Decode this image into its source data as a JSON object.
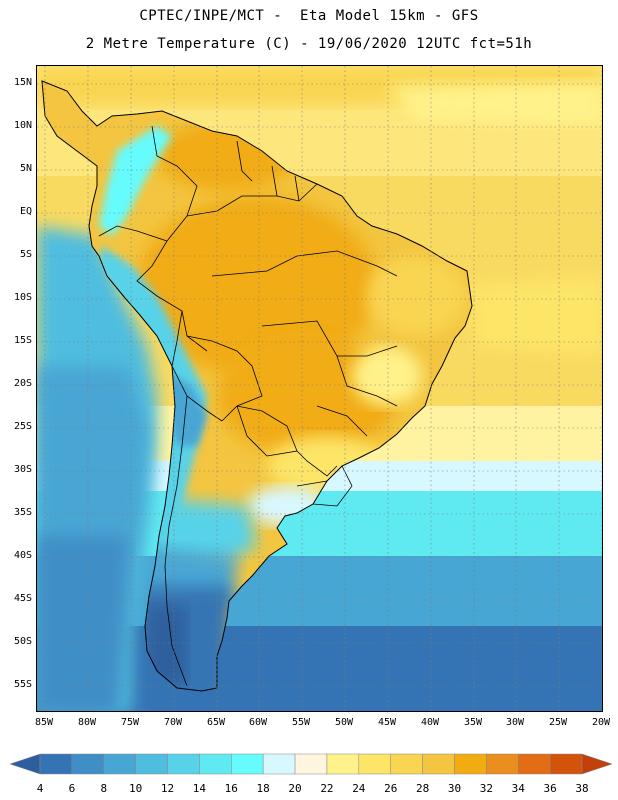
{
  "header": {
    "line1": "CPTEC/INPE/MCT -  Eta Model 15km - GFS",
    "line2": "2 Metre Temperature (C) - 19/06/2020 12UTC fct=51h"
  },
  "axes": {
    "lat_labels": [
      "15N",
      "10N",
      "5N",
      "EQ",
      "5S",
      "10S",
      "15S",
      "20S",
      "25S",
      "30S",
      "35S",
      "40S",
      "45S",
      "50S",
      "55S"
    ],
    "lon_labels": [
      "85W",
      "80W",
      "75W",
      "70W",
      "65W",
      "60W",
      "55W",
      "50W",
      "45W",
      "40W",
      "35W",
      "30W",
      "25W",
      "20W"
    ]
  },
  "legend": {
    "levels": [
      "4",
      "6",
      "8",
      "10",
      "12",
      "14",
      "16",
      "18",
      "20",
      "22",
      "24",
      "26",
      "28",
      "30",
      "32",
      "34",
      "36",
      "38"
    ],
    "colors": [
      "#2d5f9e",
      "#3574b4",
      "#3f8ec6",
      "#48a6d4",
      "#50bddf",
      "#58d2e8",
      "#5fe9f1",
      "#66fbfd",
      "#d8f8ff",
      "#fff6e0",
      "#fff28a",
      "#fde568",
      "#f9d551",
      "#f3c540",
      "#f1ac12",
      "#ea8e1e",
      "#e26d14",
      "#d4530c",
      "#c2400c"
    ]
  },
  "colors": {
    "ocean_tropics": "#fde67c",
    "ocean_mid": "#f8da60",
    "ocean_subtrop": "#fff2a0",
    "ocean_transition": "#d8f8ff",
    "ocean_cool": "#5fe9f1",
    "ocean_cold": "#48a6d4",
    "ocean_colder": "#3574b4",
    "land_hot": "#f1ac12",
    "land_warm": "#f3c540",
    "andes_cool": "#58d2e8",
    "patagonia": "#3574b4",
    "borders": "#000000"
  }
}
